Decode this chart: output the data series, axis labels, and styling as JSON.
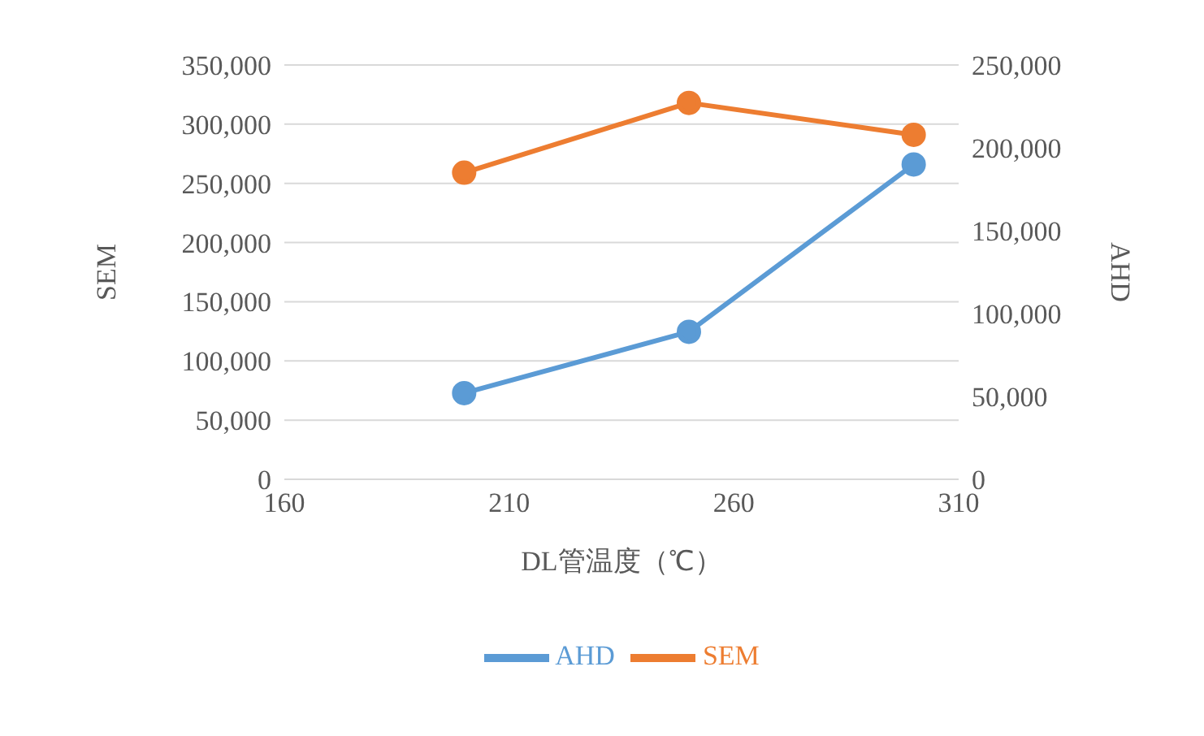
{
  "chart_data": {
    "type": "line",
    "xlabel": "DL管温度（℃）",
    "ylabel": "SEM",
    "y2label": "AHD",
    "x": [
      200,
      250,
      300
    ],
    "series": [
      {
        "name": "SEM",
        "color": "#ed7d31",
        "values": [
          259000,
          318000,
          291000
        ]
      },
      {
        "name": "AHD",
        "color": "#5b9bd5",
        "values": [
          52000,
          89000,
          190000
        ],
        "axis": "y2"
      }
    ],
    "xlim": [
      160,
      310
    ],
    "xticks": [
      160,
      210,
      260,
      310
    ],
    "ylim": [
      0,
      350000
    ],
    "yticks": [
      0,
      {
        "value": 50000,
        "label": "50,000"
      },
      {
        "value": 100000,
        "label": "100,000"
      },
      {
        "value": 150000,
        "label": "150,000"
      },
      {
        "value": 200000,
        "label": "200,000"
      },
      {
        "value": 250000,
        "label": "250,000"
      },
      {
        "value": 300000,
        "label": "300,000"
      },
      {
        "value": 350000,
        "label": "350,000"
      }
    ],
    "y2lim": [
      0,
      250000
    ],
    "y2ticks": [
      0,
      {
        "value": 50000,
        "label": "50,000"
      },
      {
        "value": 100000,
        "label": "100,000"
      },
      {
        "value": 150000,
        "label": "150,000"
      },
      {
        "value": 200000,
        "label": "200,000"
      },
      {
        "value": 250000,
        "label": "250,000"
      }
    ],
    "grid": "y",
    "legend": "bottom",
    "marker": "circle",
    "line_style": "solid"
  }
}
